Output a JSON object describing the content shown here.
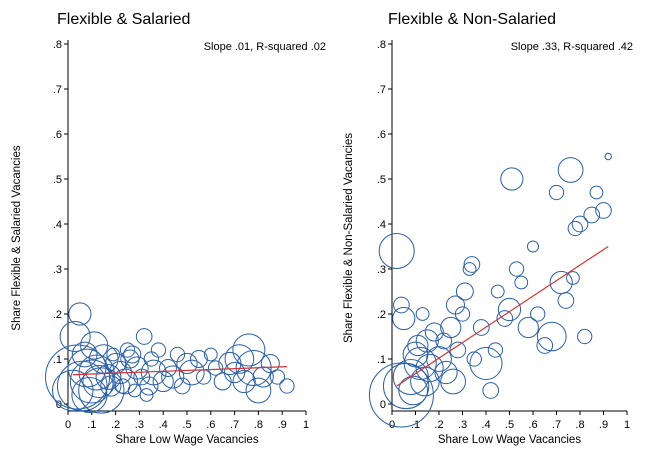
{
  "colors": {
    "marker": "#2b5fa6",
    "fit_line": "#d43333",
    "axis": "#000000"
  },
  "chart_data": [
    {
      "type": "scatter",
      "title": "Flexible & Salaried",
      "xlabel": "Share Low Wage Vacancies",
      "ylabel": "Share Flexible & Salaried Vacancies",
      "annotation": "Slope .01, R-squared .02",
      "xlim": [
        0,
        1
      ],
      "ylim": [
        0,
        0.8
      ],
      "xticks": [
        "0",
        ".1",
        ".2",
        ".3",
        ".4",
        ".5",
        ".6",
        ".7",
        ".8",
        ".9",
        "1"
      ],
      "yticks": [
        "0",
        ".1",
        ".2",
        ".3",
        ".4",
        ".5",
        ".6",
        ".7",
        ".8"
      ],
      "fit_line": {
        "x": [
          0.02,
          0.92
        ],
        "y": [
          0.065,
          0.083
        ]
      },
      "points": [
        {
          "x": 0.05,
          "y": 0.2,
          "w": 0.12
        },
        {
          "x": 0.03,
          "y": 0.15,
          "w": 0.22
        },
        {
          "x": 0.04,
          "y": 0.06,
          "w": 1.0
        },
        {
          "x": 0.06,
          "y": 0.04,
          "w": 0.6
        },
        {
          "x": 0.08,
          "y": 0.08,
          "w": 0.35
        },
        {
          "x": 0.1,
          "y": 0.05,
          "w": 0.45
        },
        {
          "x": 0.12,
          "y": 0.07,
          "w": 0.3
        },
        {
          "x": 0.14,
          "y": 0.03,
          "w": 0.5
        },
        {
          "x": 0.15,
          "y": 0.1,
          "w": 0.2
        },
        {
          "x": 0.11,
          "y": 0.13,
          "w": 0.18
        },
        {
          "x": 0.07,
          "y": 0.11,
          "w": 0.15
        },
        {
          "x": 0.02,
          "y": 0.03,
          "w": 0.4
        },
        {
          "x": 0.09,
          "y": 0.02,
          "w": 0.3
        },
        {
          "x": 0.13,
          "y": 0.05,
          "w": 0.25
        },
        {
          "x": 0.17,
          "y": 0.06,
          "w": 0.15
        },
        {
          "x": 0.18,
          "y": 0.04,
          "w": 0.1
        },
        {
          "x": 0.2,
          "y": 0.09,
          "w": 0.1
        },
        {
          "x": 0.22,
          "y": 0.07,
          "w": 0.12
        },
        {
          "x": 0.24,
          "y": 0.05,
          "w": 0.15
        },
        {
          "x": 0.26,
          "y": 0.1,
          "w": 0.08
        },
        {
          "x": 0.25,
          "y": 0.12,
          "w": 0.05
        },
        {
          "x": 0.27,
          "y": 0.11,
          "w": 0.07
        },
        {
          "x": 0.23,
          "y": 0.04,
          "w": 0.05
        },
        {
          "x": 0.29,
          "y": 0.08,
          "w": 0.12
        },
        {
          "x": 0.31,
          "y": 0.06,
          "w": 0.06
        },
        {
          "x": 0.32,
          "y": 0.15,
          "w": 0.06
        },
        {
          "x": 0.34,
          "y": 0.04,
          "w": 0.08
        },
        {
          "x": 0.35,
          "y": 0.1,
          "w": 0.05
        },
        {
          "x": 0.36,
          "y": 0.07,
          "w": 0.15
        },
        {
          "x": 0.38,
          "y": 0.12,
          "w": 0.05
        },
        {
          "x": 0.4,
          "y": 0.05,
          "w": 0.1
        },
        {
          "x": 0.42,
          "y": 0.08,
          "w": 0.07
        },
        {
          "x": 0.44,
          "y": 0.06,
          "w": 0.12
        },
        {
          "x": 0.46,
          "y": 0.11,
          "w": 0.05
        },
        {
          "x": 0.48,
          "y": 0.04,
          "w": 0.06
        },
        {
          "x": 0.5,
          "y": 0.09,
          "w": 0.1
        },
        {
          "x": 0.52,
          "y": 0.07,
          "w": 0.15
        },
        {
          "x": 0.55,
          "y": 0.1,
          "w": 0.07
        },
        {
          "x": 0.57,
          "y": 0.06,
          "w": 0.05
        },
        {
          "x": 0.6,
          "y": 0.11,
          "w": 0.04
        },
        {
          "x": 0.62,
          "y": 0.08,
          "w": 0.05
        },
        {
          "x": 0.65,
          "y": 0.05,
          "w": 0.07
        },
        {
          "x": 0.68,
          "y": 0.09,
          "w": 0.12
        },
        {
          "x": 0.7,
          "y": 0.07,
          "w": 0.1
        },
        {
          "x": 0.72,
          "y": 0.1,
          "w": 0.2
        },
        {
          "x": 0.74,
          "y": 0.05,
          "w": 0.12
        },
        {
          "x": 0.76,
          "y": 0.12,
          "w": 0.25
        },
        {
          "x": 0.78,
          "y": 0.08,
          "w": 0.3
        },
        {
          "x": 0.8,
          "y": 0.03,
          "w": 0.15
        },
        {
          "x": 0.82,
          "y": 0.06,
          "w": 0.1
        },
        {
          "x": 0.85,
          "y": 0.09,
          "w": 0.08
        },
        {
          "x": 0.88,
          "y": 0.06,
          "w": 0.05
        },
        {
          "x": 0.92,
          "y": 0.04,
          "w": 0.05
        },
        {
          "x": 0.33,
          "y": 0.02,
          "w": 0.04
        },
        {
          "x": 0.28,
          "y": 0.03,
          "w": 0.04
        },
        {
          "x": 0.19,
          "y": 0.11,
          "w": 0.04
        }
      ]
    },
    {
      "type": "scatter",
      "title": "Flexible & Non-Salaried",
      "xlabel": "Share Low Wage Vacancies",
      "ylabel": "Share Flexible & Non-Salaried Vacancies",
      "annotation": "Slope .33, R-squared .42",
      "xlim": [
        0,
        1
      ],
      "ylim": [
        0,
        0.8
      ],
      "xticks": [
        "0",
        ".1",
        ".2",
        ".3",
        ".4",
        ".5",
        ".6",
        ".7",
        ".8",
        ".9",
        "1"
      ],
      "yticks": [
        "0",
        ".1",
        ".2",
        ".3",
        ".4",
        ".5",
        ".6",
        ".7",
        ".8"
      ],
      "fit_line": {
        "x": [
          0.02,
          0.92
        ],
        "y": [
          0.04,
          0.35
        ]
      },
      "points": [
        {
          "x": 0.02,
          "y": 0.34,
          "w": 0.3
        },
        {
          "x": 0.04,
          "y": 0.22,
          "w": 0.06
        },
        {
          "x": 0.05,
          "y": 0.19,
          "w": 0.12
        },
        {
          "x": 0.04,
          "y": 0.02,
          "w": 1.0
        },
        {
          "x": 0.06,
          "y": 0.04,
          "w": 0.5
        },
        {
          "x": 0.08,
          "y": 0.06,
          "w": 0.3
        },
        {
          "x": 0.1,
          "y": 0.11,
          "w": 0.15
        },
        {
          "x": 0.11,
          "y": 0.13,
          "w": 0.1
        },
        {
          "x": 0.12,
          "y": 0.09,
          "w": 0.25
        },
        {
          "x": 0.14,
          "y": 0.05,
          "w": 0.2
        },
        {
          "x": 0.15,
          "y": 0.14,
          "w": 0.12
        },
        {
          "x": 0.16,
          "y": 0.08,
          "w": 0.18
        },
        {
          "x": 0.18,
          "y": 0.16,
          "w": 0.08
        },
        {
          "x": 0.2,
          "y": 0.1,
          "w": 0.15
        },
        {
          "x": 0.22,
          "y": 0.14,
          "w": 0.06
        },
        {
          "x": 0.23,
          "y": 0.07,
          "w": 0.12
        },
        {
          "x": 0.25,
          "y": 0.17,
          "w": 0.1
        },
        {
          "x": 0.26,
          "y": 0.05,
          "w": 0.15
        },
        {
          "x": 0.27,
          "y": 0.22,
          "w": 0.08
        },
        {
          "x": 0.28,
          "y": 0.12,
          "w": 0.06
        },
        {
          "x": 0.3,
          "y": 0.2,
          "w": 0.05
        },
        {
          "x": 0.31,
          "y": 0.25,
          "w": 0.07
        },
        {
          "x": 0.33,
          "y": 0.3,
          "w": 0.04
        },
        {
          "x": 0.34,
          "y": 0.31,
          "w": 0.06
        },
        {
          "x": 0.35,
          "y": 0.1,
          "w": 0.05
        },
        {
          "x": 0.38,
          "y": 0.17,
          "w": 0.06
        },
        {
          "x": 0.4,
          "y": 0.09,
          "w": 0.25
        },
        {
          "x": 0.42,
          "y": 0.03,
          "w": 0.06
        },
        {
          "x": 0.44,
          "y": 0.12,
          "w": 0.05
        },
        {
          "x": 0.45,
          "y": 0.25,
          "w": 0.04
        },
        {
          "x": 0.48,
          "y": 0.19,
          "w": 0.06
        },
        {
          "x": 0.5,
          "y": 0.21,
          "w": 0.12
        },
        {
          "x": 0.51,
          "y": 0.5,
          "w": 0.12
        },
        {
          "x": 0.53,
          "y": 0.3,
          "w": 0.05
        },
        {
          "x": 0.55,
          "y": 0.27,
          "w": 0.04
        },
        {
          "x": 0.58,
          "y": 0.17,
          "w": 0.1
        },
        {
          "x": 0.6,
          "y": 0.35,
          "w": 0.03
        },
        {
          "x": 0.62,
          "y": 0.2,
          "w": 0.05
        },
        {
          "x": 0.65,
          "y": 0.13,
          "w": 0.06
        },
        {
          "x": 0.68,
          "y": 0.15,
          "w": 0.2
        },
        {
          "x": 0.7,
          "y": 0.47,
          "w": 0.05
        },
        {
          "x": 0.72,
          "y": 0.27,
          "w": 0.12
        },
        {
          "x": 0.74,
          "y": 0.23,
          "w": 0.06
        },
        {
          "x": 0.76,
          "y": 0.52,
          "w": 0.15
        },
        {
          "x": 0.78,
          "y": 0.39,
          "w": 0.05
        },
        {
          "x": 0.8,
          "y": 0.4,
          "w": 0.06
        },
        {
          "x": 0.82,
          "y": 0.15,
          "w": 0.05
        },
        {
          "x": 0.85,
          "y": 0.42,
          "w": 0.06
        },
        {
          "x": 0.87,
          "y": 0.47,
          "w": 0.04
        },
        {
          "x": 0.9,
          "y": 0.43,
          "w": 0.06
        },
        {
          "x": 0.92,
          "y": 0.55,
          "w": 0.01
        },
        {
          "x": 0.77,
          "y": 0.28,
          "w": 0.04
        },
        {
          "x": 0.13,
          "y": 0.2,
          "w": 0.04
        },
        {
          "x": 0.09,
          "y": 0.03,
          "w": 0.2
        }
      ]
    }
  ]
}
